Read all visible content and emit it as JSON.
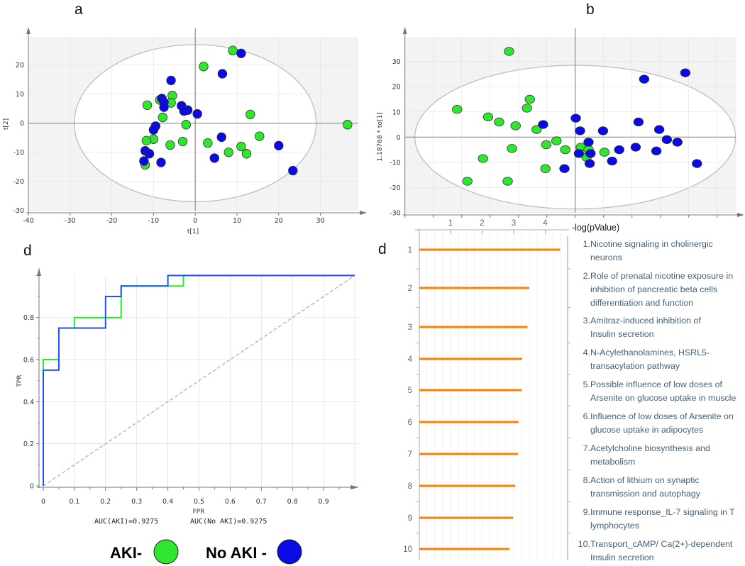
{
  "legend": {
    "items": [
      {
        "label": "AKI-",
        "color": "#2ee62e"
      },
      {
        "label": "No AKI -",
        "color": "#0a0ae6"
      }
    ]
  },
  "chart_data": [
    {
      "type": "scatter",
      "panel_label": "a",
      "xlabel": "t[1]",
      "ylabel": "t[2]",
      "xlim": [
        -40,
        37
      ],
      "ylim": [
        -30,
        29
      ],
      "xticks": [
        -40,
        -30,
        -20,
        -10,
        0,
        10,
        20,
        30
      ],
      "yticks": [
        -30,
        -20,
        -10,
        0,
        10,
        20
      ],
      "confidence_ellipse": {
        "x_semi_axis": 29,
        "y_semi_axis": 27
      },
      "series": [
        {
          "name": "AKI-",
          "color": "#2ee62e",
          "points": [
            [
              9,
              25
            ],
            [
              2,
              19.5
            ],
            [
              -5.5,
              9.5
            ],
            [
              -8.5,
              8
            ],
            [
              -5.8,
              7
            ],
            [
              -11.5,
              6.2
            ],
            [
              -7.8,
              2
            ],
            [
              -2.2,
              -0.5
            ],
            [
              13.2,
              3
            ],
            [
              36.5,
              -0.5
            ],
            [
              15.4,
              -4.5
            ],
            [
              11,
              -8
            ],
            [
              12.3,
              -10.5
            ],
            [
              8,
              -10
            ],
            [
              3,
              -6.8
            ],
            [
              -3,
              -6.3
            ],
            [
              -6,
              -7.5
            ],
            [
              -10,
              -5.5
            ],
            [
              -11.7,
              -6
            ],
            [
              -12,
              -14.3
            ]
          ]
        },
        {
          "name": "No AKI -",
          "color": "#0a0ae6",
          "points": [
            [
              11,
              24
            ],
            [
              6.5,
              17
            ],
            [
              -5.8,
              14.7
            ],
            [
              -8,
              8.5
            ],
            [
              -7.5,
              7.2
            ],
            [
              -7.5,
              5.5
            ],
            [
              -3.3,
              6
            ],
            [
              -1.8,
              4.5
            ],
            [
              -2.7,
              4.2
            ],
            [
              0.5,
              3.2
            ],
            [
              -9.5,
              -1
            ],
            [
              -10,
              -2.3
            ],
            [
              6.3,
              -4.8
            ],
            [
              4.6,
              -12
            ],
            [
              20,
              -7.7
            ],
            [
              23.4,
              -16.3
            ],
            [
              -12,
              -9.5
            ],
            [
              -11,
              -10.5
            ],
            [
              -8.2,
              -13.5
            ],
            [
              -12.3,
              -13
            ]
          ]
        }
      ]
    },
    {
      "type": "scatter",
      "panel_label": "b",
      "xlabel": "",
      "ylabel": "1.18768 * to[1]",
      "xlim": [
        -60,
        57
      ],
      "ylim": [
        -30,
        39
      ],
      "xticks": [],
      "yticks": [
        -30,
        -20,
        -10,
        0,
        10,
        20,
        30
      ],
      "confidence_ellipse": {
        "x_semi_axis": 56.5,
        "y_semi_axis": 28.5
      },
      "series": [
        {
          "name": "AKI-",
          "color": "#2ee62e",
          "points": [
            [
              -23.3,
              34
            ],
            [
              -41.6,
              11
            ],
            [
              -16,
              15
            ],
            [
              -17,
              11.5
            ],
            [
              -30.7,
              8
            ],
            [
              -26.8,
              6
            ],
            [
              -21,
              4.5
            ],
            [
              -13.6,
              3
            ],
            [
              -6.6,
              -1.5
            ],
            [
              -10.2,
              -3
            ],
            [
              -22.3,
              -4.5
            ],
            [
              -3.5,
              -5
            ],
            [
              2,
              -4
            ],
            [
              4.7,
              -5
            ],
            [
              4,
              -8
            ],
            [
              10.3,
              -6
            ],
            [
              -32.5,
              -8.5
            ],
            [
              -10.5,
              -12.5
            ],
            [
              -38,
              -17.5
            ],
            [
              -23.8,
              -17.5
            ]
          ]
        },
        {
          "name": "No AKI -",
          "color": "#0a0ae6",
          "points": [
            [
              -11.3,
              5
            ],
            [
              0.2,
              7.5
            ],
            [
              1.7,
              2.5
            ],
            [
              9.8,
              2.5
            ],
            [
              4.7,
              -2
            ],
            [
              1.3,
              -6.5
            ],
            [
              5.4,
              -6.5
            ],
            [
              5.1,
              -10.5
            ],
            [
              -3.8,
              -12.5
            ],
            [
              13,
              -9.5
            ],
            [
              15.5,
              -5
            ],
            [
              21.3,
              -4
            ],
            [
              22.3,
              6
            ],
            [
              28.6,
              -5.5
            ],
            [
              29.6,
              3
            ],
            [
              32.3,
              -1
            ],
            [
              36,
              -2
            ],
            [
              24.3,
              23
            ],
            [
              38.8,
              25.5
            ],
            [
              42.9,
              -10.5
            ]
          ]
        }
      ]
    },
    {
      "type": "line",
      "panel_label": "d",
      "xlabel": "FPR",
      "ylabel": "TPR",
      "xlim": [
        0,
        1
      ],
      "ylim": [
        0,
        1
      ],
      "xticks": [
        0,
        0.1,
        0.2,
        0.3,
        0.4,
        0.5,
        0.6,
        0.7,
        0.8,
        0.9
      ],
      "yticks": [
        0,
        0.2,
        0.4,
        0.6,
        0.8
      ],
      "annotations": [
        "AUC(AKI)=0.9275",
        "AUC(No AKI)=0.9275"
      ],
      "series": [
        {
          "name": "AKI",
          "color": "#22ee22",
          "x": [
            0,
            0,
            0.05,
            0.05,
            0.1,
            0.1,
            0.25,
            0.25,
            0.45,
            0.45,
            1
          ],
          "y": [
            0,
            0.6,
            0.6,
            0.75,
            0.75,
            0.8,
            0.8,
            0.95,
            0.95,
            1,
            1
          ]
        },
        {
          "name": "No AKI",
          "color": "#1e50ff",
          "x": [
            0,
            0,
            0.05,
            0.05,
            0.2,
            0.2,
            0.25,
            0.25,
            0.4,
            0.4,
            1
          ],
          "y": [
            0,
            0.55,
            0.55,
            0.75,
            0.75,
            0.9,
            0.9,
            0.95,
            0.95,
            1,
            1
          ]
        },
        {
          "name": "chance",
          "color": "#b0b0b0",
          "x": [
            0,
            1
          ],
          "y": [
            0,
            1
          ]
        }
      ]
    },
    {
      "type": "bar",
      "orientation": "horizontal",
      "panel_label": "d",
      "xlabel": "-log(pValue)",
      "xticks": [
        1,
        2,
        3,
        4
      ],
      "xlim": [
        0,
        4.7
      ],
      "color": "#ff7f00",
      "categories": [
        "1",
        "2",
        "3",
        "4",
        "5",
        "6",
        "7",
        "8",
        "9",
        "10"
      ],
      "values": [
        4.47,
        3.49,
        3.44,
        3.27,
        3.25,
        3.15,
        3.14,
        3.05,
        2.98,
        2.87
      ],
      "pathways": [
        {
          "num": "1.",
          "lines": [
            "Nicotine signaling in cholinergic",
            "neurons"
          ]
        },
        {
          "num": "2.",
          "lines": [
            "Role of prenatal nicotine exposure in",
            "inhibition of pancreatic beta cells",
            "differentiation and function"
          ]
        },
        {
          "num": "3.",
          "lines": [
            "Amitraz-induced inhibition of",
            "Insulin secretion"
          ]
        },
        {
          "num": "4.",
          "lines": [
            "N-Acylethanolamines, HSRL5-",
            "transacylation pathway"
          ]
        },
        {
          "num": "5.",
          "lines": [
            "Possible influence of low doses of",
            "Arsenite on glucose uptake in muscle"
          ]
        },
        {
          "num": "6.",
          "lines": [
            "Influence of low doses of Arsenite on",
            "glucose uptake in adipocytes"
          ]
        },
        {
          "num": "7.",
          "lines": [
            "Acetylcholine biosynthesis and",
            "metabolism"
          ]
        },
        {
          "num": "8.",
          "lines": [
            "Action of lithium on synaptic",
            "transmission and autophagy"
          ]
        },
        {
          "num": "9.",
          "lines": [
            "Immune response_IL-7 signaling in T",
            "lymphocytes"
          ]
        },
        {
          "num": "10.",
          "lines": [
            "Transport_cAMP/ Ca(2+)-dependent",
            "Insulin secretion"
          ]
        }
      ]
    }
  ]
}
